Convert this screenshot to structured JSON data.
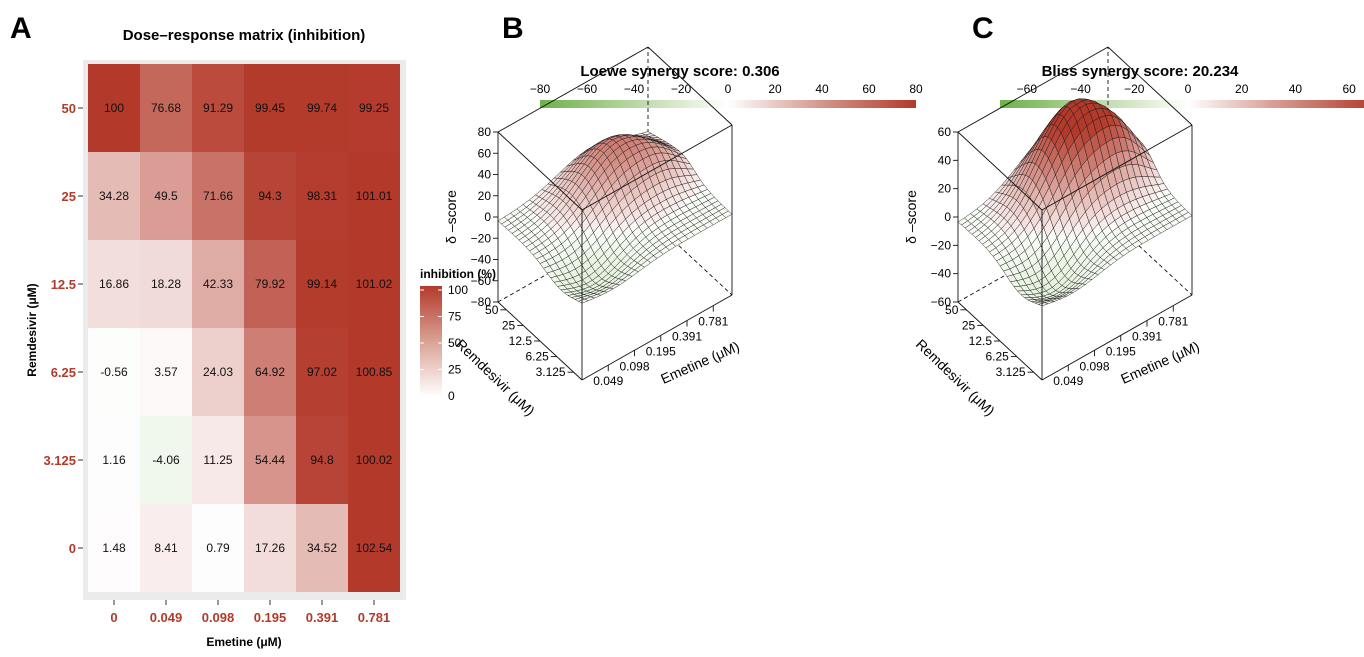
{
  "panels": {
    "a": "A",
    "b": "B",
    "c": "C"
  },
  "heatmap": {
    "title": "Dose–response matrix (inhibition)",
    "xlabel": "Emetine (μM)",
    "ylabel": "Remdesivir (μM)",
    "x_ticks": [
      "0",
      "0.049",
      "0.098",
      "0.195",
      "0.391",
      "0.781"
    ],
    "y_ticks": [
      "50",
      "25",
      "12.5",
      "6.25",
      "3.125",
      "0"
    ],
    "legend_title": "inhibition (%)",
    "legend_ticks": [
      "100",
      "75",
      "50",
      "25",
      "0"
    ],
    "colors": {
      "high": "#b33a2b",
      "low": "#ffffff",
      "neg": "#e8f2e4",
      "tick": "#b23a2a",
      "panel_bg": "#ebebeb"
    }
  },
  "chart_data": [
    {
      "type": "heatmap",
      "title": "Dose–response matrix (inhibition)",
      "xlabel": "Emetine (μM)",
      "ylabel": "Remdesivir (μM)",
      "x": [
        "0",
        "0.049",
        "0.098",
        "0.195",
        "0.391",
        "0.781"
      ],
      "y": [
        "50",
        "25",
        "12.5",
        "6.25",
        "3.125",
        "0"
      ],
      "values": [
        [
          100,
          76.68,
          91.29,
          99.45,
          99.74,
          99.25
        ],
        [
          34.28,
          49.5,
          71.66,
          94.3,
          98.31,
          101.01
        ],
        [
          16.86,
          18.28,
          42.33,
          79.92,
          99.14,
          101.02
        ],
        [
          -0.56,
          3.57,
          24.03,
          64.92,
          97.02,
          100.85
        ],
        [
          1.16,
          -4.06,
          11.25,
          54.44,
          94.8,
          100.02
        ],
        [
          1.48,
          8.41,
          0.79,
          17.26,
          34.52,
          102.54
        ]
      ],
      "colorbar": {
        "label": "inhibition (%)",
        "range": [
          0,
          100
        ]
      }
    },
    {
      "type": "surface",
      "title": "Loewe synergy score: 0.306",
      "xlabel": "Emetine (μM)",
      "ylabel": "Remdesivir (μM)",
      "zlabel": "δ –score",
      "x_ticks": [
        "0.049",
        "0.098",
        "0.195",
        "0.391",
        "0.781"
      ],
      "y_ticks": [
        "50",
        "25",
        "12.5",
        "6.25",
        "3.125"
      ],
      "z_ticks": [
        "80",
        "60",
        "40",
        "20",
        "0",
        "−20",
        "−40",
        "−60",
        "−80"
      ],
      "zlim": [
        -80,
        80
      ],
      "colorbar_ticks": [
        "−80",
        "−60",
        "−40",
        "−20",
        "0",
        "20",
        "40",
        "60",
        "80"
      ],
      "colorbar_range": [
        -80,
        80
      ],
      "peak": 45
    },
    {
      "type": "surface",
      "title": "Bliss synergy score: 20.234",
      "xlabel": "Emetine (μM)",
      "ylabel": "Remdesivir (μM)",
      "zlabel": "δ –score",
      "x_ticks": [
        "0.049",
        "0.098",
        "0.195",
        "0.391",
        "0.781"
      ],
      "y_ticks": [
        "50",
        "25",
        "12.5",
        "6.25",
        "3.125"
      ],
      "z_ticks": [
        "60",
        "40",
        "20",
        "0",
        "−20",
        "−40",
        "−60"
      ],
      "zlim": [
        -60,
        60
      ],
      "colorbar_ticks": [
        "−60",
        "−40",
        "−20",
        "0",
        "20",
        "40",
        "60"
      ],
      "colorbar_range": [
        -70,
        70
      ],
      "peak": 62
    }
  ]
}
